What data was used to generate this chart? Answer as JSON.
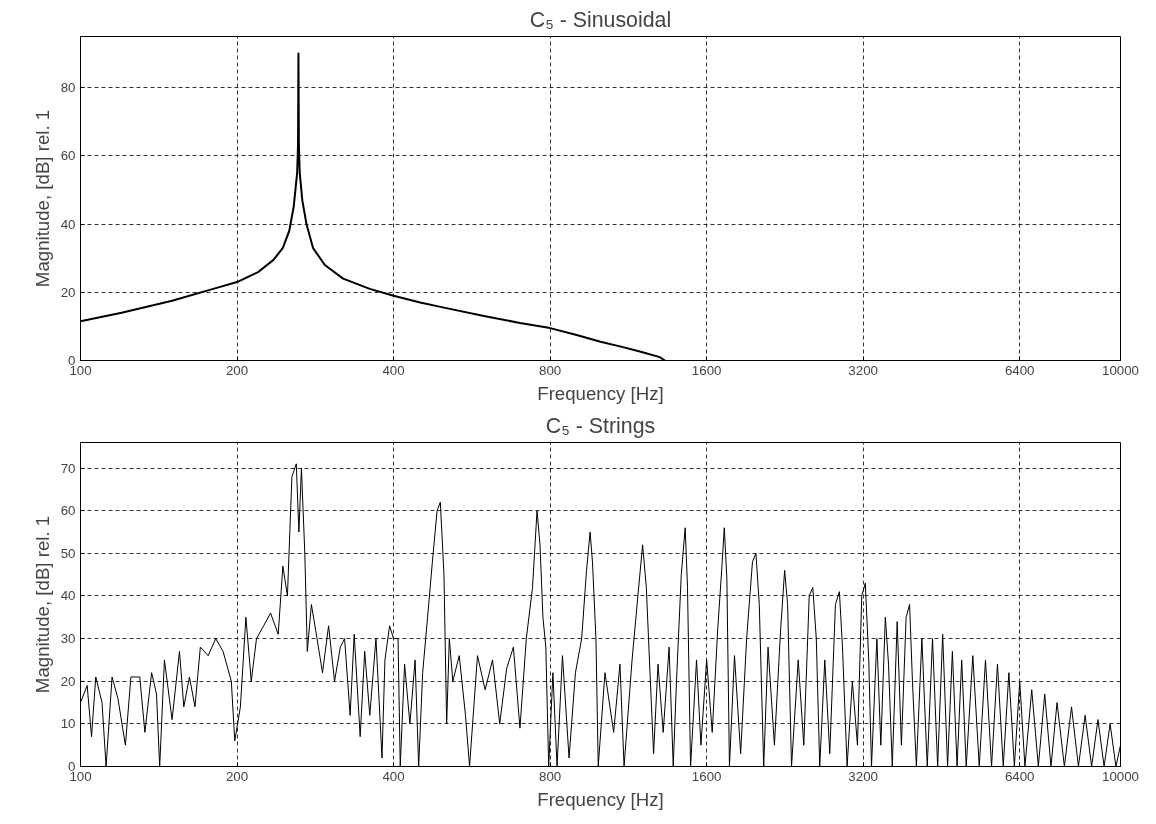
{
  "chart_data": [
    {
      "type": "line",
      "title": "C₅ - Sinusoidal",
      "xlabel": "Frequency [Hz]",
      "ylabel": "Magnitude, [dB] rel. 1",
      "log": "x",
      "grid": true,
      "marker": "none",
      "line_style": "solid",
      "xlim": [
        100,
        10000
      ],
      "ylim": [
        0,
        95
      ],
      "xticks": [
        100,
        200,
        400,
        800,
        1600,
        3200,
        6400,
        10000
      ],
      "yticks": [
        0,
        20,
        40,
        60,
        80
      ],
      "series": [
        {
          "color": "#000000",
          "x": [
            100,
            120,
            150,
            180,
            200,
            220,
            235,
            245,
            252,
            257,
            259,
            261,
            262,
            262.5,
            263,
            264,
            267,
            272,
            280,
            295,
            320,
            360,
            400,
            450,
            500,
            600,
            700,
            800,
            900,
            1000,
            1100,
            1200,
            1300,
            1330
          ],
          "values": [
            11.5,
            14,
            17.5,
            21,
            23,
            26,
            29.5,
            33,
            38,
            45,
            50,
            55,
            63,
            90,
            63,
            55,
            47,
            40,
            33,
            28,
            24,
            21,
            19,
            17,
            15.5,
            13,
            11,
            9.5,
            7.5,
            5.5,
            4,
            2.5,
            1,
            0
          ]
        }
      ]
    },
    {
      "type": "line",
      "title": "C₅ - Strings",
      "xlabel": "Frequency [Hz]",
      "ylabel": "Magnitude, [dB] rel. 1",
      "log": "x",
      "grid": true,
      "marker": "none",
      "line_style": "solid",
      "xlim": [
        100,
        10000
      ],
      "ylim": [
        0,
        76
      ],
      "xticks": [
        100,
        200,
        400,
        800,
        1600,
        3200,
        6400,
        10000
      ],
      "yticks": [
        0,
        10,
        20,
        30,
        40,
        50,
        60,
        70
      ],
      "series": [
        {
          "color": "#000000",
          "x": [
            100,
            103,
            105,
            107,
            110,
            112,
            115,
            118,
            122,
            125,
            130,
            133,
            137,
            140,
            142,
            145,
            150,
            155,
            158,
            162,
            166,
            170,
            176,
            182,
            188,
            195,
            198,
            203,
            208,
            213,
            218,
            225,
            232,
            240,
            245,
            250,
            255,
            260,
            263,
            266,
            270,
            273,
            278,
            285,
            292,
            300,
            308,
            316,
            322,
            330,
            336,
            345,
            352,
            360,
            370,
            380,
            385,
            393,
            400,
            408,
            412,
            420,
            430,
            440,
            447,
            455,
            465,
            475,
            485,
            492,
            500,
            506,
            512,
            520,
            535,
            550,
            560,
            580,
            600,
            620,
            640,
            660,
            680,
            700,
            720,
            740,
            755,
            765,
            775,
            785,
            795,
            810,
            825,
            845,
            870,
            895,
            920,
            940,
            955,
            965,
            980,
            990,
            1020,
            1060,
            1090,
            1110,
            1150,
            1180,
            1205,
            1225,
            1245,
            1265,
            1290,
            1320,
            1355,
            1380,
            1400,
            1430,
            1455,
            1470,
            1490,
            1530,
            1560,
            1600,
            1640,
            1680,
            1710,
            1730,
            1750,
            1770,
            1810,
            1860,
            1910,
            1960,
            1990,
            2020,
            2060,
            2100,
            2160,
            2220,
            2260,
            2290,
            2330,
            2400,
            2460,
            2520,
            2560,
            2600,
            2640,
            2700,
            2760,
            2830,
            2880,
            2920,
            2980,
            3050,
            3120,
            3180,
            3230,
            3280,
            3320,
            3400,
            3460,
            3530,
            3580,
            3640,
            3720,
            3790,
            3870,
            3930,
            3980,
            4050,
            4150,
            4250,
            4350,
            4450,
            4550,
            4650,
            4750,
            4850,
            4950,
            5050,
            5200,
            5350,
            5500,
            5650,
            5800,
            5950,
            6100,
            6250,
            6400,
            6550,
            6750,
            6950,
            7150,
            7350,
            7550,
            7800,
            8050,
            8300,
            8550,
            8800,
            9050,
            9300,
            9550,
            9800,
            10000
          ],
          "values": [
            15,
            19,
            7,
            21,
            15,
            0,
            21,
            16,
            5,
            21,
            21,
            8,
            22,
            17,
            0,
            25,
            11,
            27,
            14,
            21,
            14,
            28,
            26,
            30,
            27,
            20,
            6,
            14,
            35,
            20,
            30,
            33,
            36,
            31,
            47,
            40,
            68,
            71,
            55,
            70,
            50,
            27,
            38,
            30,
            22,
            33,
            20,
            28,
            30,
            12,
            31,
            7,
            27,
            12,
            30,
            2,
            25,
            33,
            30,
            30,
            0,
            24,
            10,
            25,
            0,
            22,
            35,
            48,
            60,
            62,
            45,
            10,
            30,
            20,
            26,
            12,
            0,
            26,
            18,
            25,
            10,
            23,
            28,
            9,
            30,
            42,
            60,
            52,
            35,
            28,
            0,
            22,
            0,
            26,
            2,
            22,
            30,
            46,
            55,
            48,
            30,
            0,
            22,
            8,
            24,
            0,
            25,
            40,
            52,
            42,
            22,
            3,
            24,
            8,
            28,
            0,
            20,
            45,
            56,
            42,
            0,
            25,
            5,
            25,
            8,
            32,
            46,
            56,
            44,
            0,
            26,
            3,
            30,
            48,
            50,
            38,
            0,
            28,
            5,
            32,
            46,
            38,
            0,
            25,
            5,
            40,
            42,
            30,
            0,
            25,
            3,
            38,
            41,
            28,
            0,
            20,
            5,
            40,
            43,
            25,
            0,
            30,
            5,
            35,
            24,
            0,
            34,
            5,
            35,
            38,
            20,
            0,
            30,
            0,
            30,
            0,
            31,
            0,
            27,
            0,
            25,
            0,
            26,
            0,
            25,
            0,
            24,
            0,
            22,
            0,
            20,
            0,
            18,
            0,
            17,
            0,
            15,
            0,
            14,
            0,
            12,
            0,
            11,
            0,
            10,
            0,
            5
          ]
        }
      ]
    }
  ]
}
